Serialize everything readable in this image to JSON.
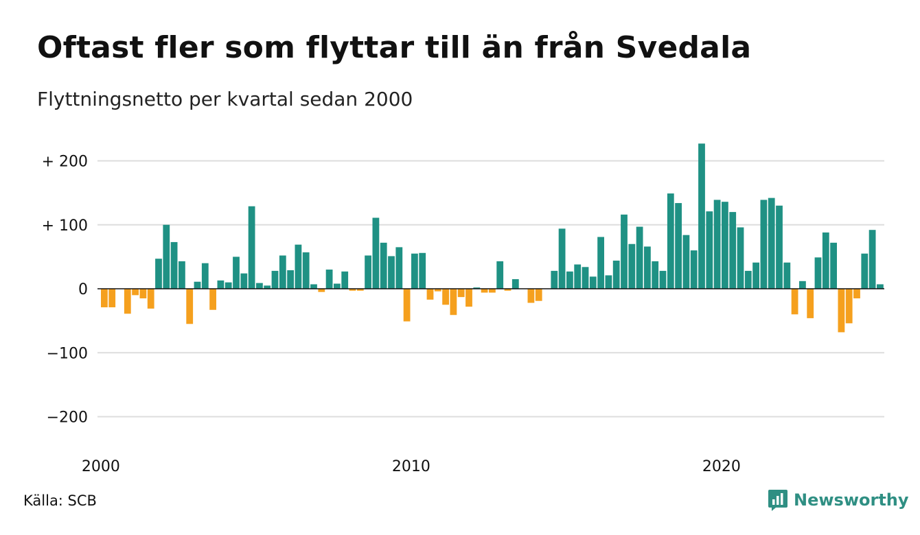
{
  "header": {
    "title": "Oftast fler som flyttar till än från Svedala",
    "subtitle": "Flyttningsnetto per kvartal sedan 2000"
  },
  "footer": {
    "source": "Källa: SCB",
    "brand": "Newsworthy",
    "brand_icon": "newsworthy-logo-icon"
  },
  "colors": {
    "positive": "#1f9184",
    "negative": "#f5a01e",
    "grid": "#dddddd",
    "zero_line": "#111111",
    "brand": "#2f8f83"
  },
  "chart_data": {
    "type": "bar",
    "title": "Oftast fler som flyttar till än från Svedala",
    "subtitle": "Flyttningsnetto per kvartal sedan 2000",
    "xlabel": "",
    "ylabel": "",
    "x_tick_labels": [
      "2000",
      "2010",
      "2020"
    ],
    "y_ticks": [
      200,
      100,
      0,
      -100,
      -200
    ],
    "y_tick_labels": [
      "+ 200",
      "+ 100",
      "0",
      "−100",
      "−200"
    ],
    "ylim": [
      -200,
      230
    ],
    "grid": true,
    "legend": "none",
    "start": "2000 Q1",
    "frequency": "quarterly",
    "series": [
      {
        "values": [
          -29,
          -29,
          0,
          -39,
          -10,
          -15,
          -31,
          47,
          100,
          73,
          43,
          -55,
          11,
          40,
          -33,
          13,
          10,
          50,
          24,
          129,
          9,
          5,
          28,
          52,
          29,
          69,
          57,
          7,
          -5,
          30,
          8,
          27,
          -3,
          -3,
          52,
          111,
          72,
          51,
          65,
          -51,
          55,
          56,
          -17,
          -4,
          -25,
          -41,
          -13,
          -28,
          2,
          -6,
          -6,
          43,
          -3,
          15,
          0,
          -22,
          -19,
          0,
          28,
          94,
          27,
          38,
          34,
          19,
          81,
          21,
          44,
          116,
          70,
          97,
          66,
          43,
          28,
          149,
          134,
          84,
          60,
          227,
          121,
          139,
          136,
          120,
          96,
          28,
          41,
          139,
          142,
          130,
          41,
          -40,
          12,
          -46,
          49,
          88,
          72,
          -68,
          -54,
          -15,
          55,
          92,
          7
        ]
      }
    ]
  }
}
